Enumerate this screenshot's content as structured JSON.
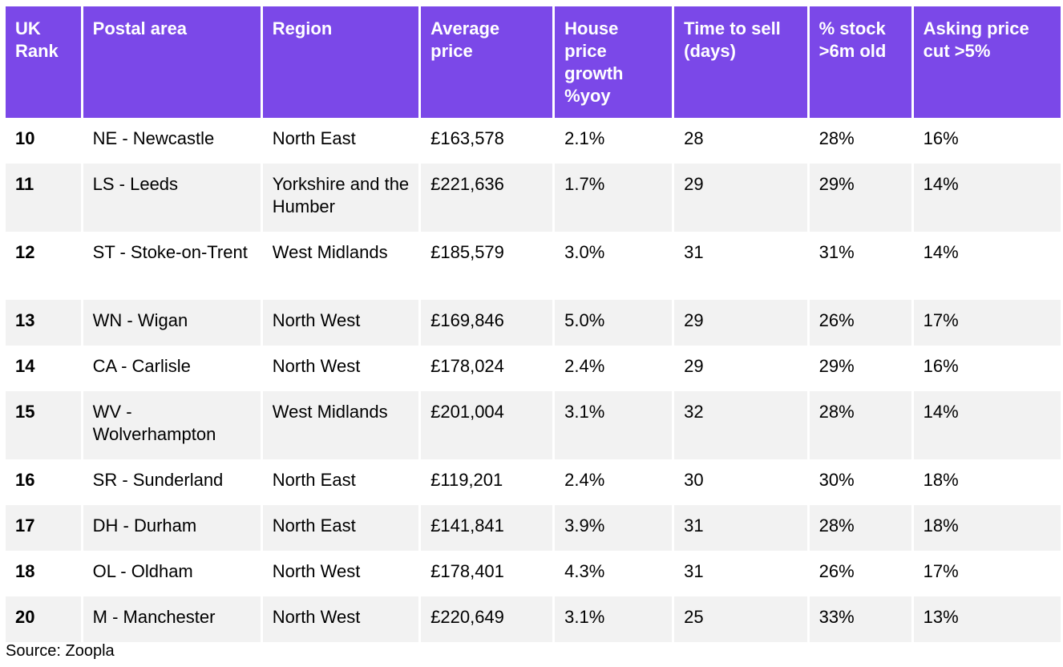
{
  "headers": [
    "UK Rank",
    "Postal area",
    "Region",
    "Average price",
    "House price growth %yoy",
    "Time to sell (days)",
    "% stock >6m old",
    "Asking price cut >5%"
  ],
  "rows": [
    [
      "10",
      "NE - Newcastle",
      "North East",
      "£163,578",
      "2.1%",
      "28",
      "28%",
      "16%"
    ],
    [
      "11",
      "LS - Leeds",
      "Yorkshire and the Humber",
      "£221,636",
      "1.7%",
      "29",
      "29%",
      "14%"
    ],
    [
      "12",
      "ST - Stoke-on-Trent",
      "West Midlands",
      "£185,579",
      "3.0%",
      "31",
      "31%",
      "14%"
    ],
    [
      "13",
      "WN - Wigan",
      "North West",
      "£169,846",
      "5.0%",
      "29",
      "26%",
      "17%"
    ],
    [
      "14",
      "CA - Carlisle",
      "North West",
      "£178,024",
      "2.4%",
      "29",
      "29%",
      "16%"
    ],
    [
      "15",
      "WV - Wolverhampton",
      "West Midlands",
      "£201,004",
      "3.1%",
      "32",
      "28%",
      "14%"
    ],
    [
      "16",
      "SR - Sunderland",
      "North East",
      "£119,201",
      "2.4%",
      "30",
      "30%",
      "18%"
    ],
    [
      "17",
      "DH - Durham",
      "North East",
      "£141,841",
      "3.9%",
      "31",
      "28%",
      "18%"
    ],
    [
      "18",
      "OL - Oldham",
      "North West",
      "£178,401",
      "4.3%",
      "31",
      "26%",
      "17%"
    ],
    [
      "20",
      "M - Manchester",
      "North West",
      "£220,649",
      "3.1%",
      "25",
      "33%",
      "13%"
    ]
  ],
  "source": "Source: Zoopla",
  "colors": {
    "header_bg": "#7b48e8",
    "header_text": "#ffffff",
    "row_alt_bg": "#f2f2f2"
  },
  "chart_data": {
    "type": "table",
    "columns": [
      "UK Rank",
      "Postal area",
      "Region",
      "Average price",
      "House price growth %yoy",
      "Time to sell (days)",
      "% stock >6m old",
      "Asking price cut >5%"
    ],
    "rows": [
      [
        10,
        "NE - Newcastle",
        "North East",
        163578,
        2.1,
        28,
        28,
        16
      ],
      [
        11,
        "LS - Leeds",
        "Yorkshire and the Humber",
        221636,
        1.7,
        29,
        29,
        14
      ],
      [
        12,
        "ST - Stoke-on-Trent",
        "West Midlands",
        185579,
        3.0,
        31,
        31,
        14
      ],
      [
        13,
        "WN - Wigan",
        "North West",
        169846,
        5.0,
        29,
        26,
        17
      ],
      [
        14,
        "CA - Carlisle",
        "North West",
        178024,
        2.4,
        29,
        29,
        16
      ],
      [
        15,
        "WV - Wolverhampton",
        "West Midlands",
        201004,
        3.1,
        32,
        28,
        14
      ],
      [
        16,
        "SR - Sunderland",
        "North East",
        119201,
        2.4,
        30,
        30,
        18
      ],
      [
        17,
        "DH - Durham",
        "North East",
        141841,
        3.9,
        31,
        28,
        18
      ],
      [
        18,
        "OL - Oldham",
        "North West",
        178401,
        4.3,
        31,
        26,
        17
      ],
      [
        20,
        "M - Manchester",
        "North West",
        220649,
        3.1,
        25,
        33,
        13
      ]
    ]
  }
}
